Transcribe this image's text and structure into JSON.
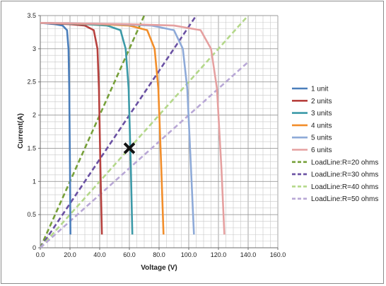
{
  "chart_data": {
    "type": "line",
    "title": "",
    "xlabel": "Voltage (V)",
    "ylabel": "Current(A)",
    "xlim": [
      0,
      160
    ],
    "ylim": [
      0,
      3.5
    ],
    "grid": true,
    "legend_position": "right",
    "x_ticks": [
      0,
      20,
      40,
      60,
      80,
      100,
      120,
      140,
      160
    ],
    "x_tick_labels": [
      "0.0",
      "20.0",
      "40.0",
      "60.0",
      "80.0",
      "100.0",
      "120.0",
      "140.0",
      "160.0"
    ],
    "y_ticks": [
      0,
      0.5,
      1,
      1.5,
      2,
      2.5,
      3,
      3.5
    ],
    "y_tick_labels": [
      "0",
      "0.5",
      "1",
      "1.5",
      "2",
      "2.5",
      "3",
      "3.5"
    ],
    "series": [
      {
        "name": "1 unit",
        "color": "#4a7ebb",
        "style": "solid",
        "points": [
          [
            0,
            3.39
          ],
          [
            10,
            3.37
          ],
          [
            15,
            3.35
          ],
          [
            18,
            3.28
          ],
          [
            19,
            3.0
          ],
          [
            19.5,
            2.4
          ],
          [
            20,
            1.2
          ],
          [
            20.3,
            0.2
          ]
        ]
      },
      {
        "name": "2 units",
        "color": "#b7413e",
        "style": "solid",
        "points": [
          [
            0,
            3.39
          ],
          [
            20,
            3.37
          ],
          [
            30,
            3.35
          ],
          [
            36,
            3.28
          ],
          [
            38.5,
            3.0
          ],
          [
            39.5,
            2.4
          ],
          [
            40.5,
            1.2
          ],
          [
            41.5,
            0.2
          ]
        ]
      },
      {
        "name": "3 units",
        "color": "#3c9aa8",
        "style": "solid",
        "points": [
          [
            0,
            3.39
          ],
          [
            30,
            3.37
          ],
          [
            45,
            3.35
          ],
          [
            54,
            3.28
          ],
          [
            57.5,
            3.0
          ],
          [
            59.5,
            2.4
          ],
          [
            61,
            1.2
          ],
          [
            62,
            0.2
          ]
        ]
      },
      {
        "name": "4 units",
        "color": "#f28e2b",
        "style": "solid",
        "points": [
          [
            0,
            3.39
          ],
          [
            40,
            3.37
          ],
          [
            60,
            3.35
          ],
          [
            72,
            3.28
          ],
          [
            77,
            3.0
          ],
          [
            79.5,
            2.4
          ],
          [
            81.5,
            1.2
          ],
          [
            83,
            0.2
          ]
        ]
      },
      {
        "name": "5 units",
        "color": "#8eaad8",
        "style": "solid",
        "points": [
          [
            0,
            3.39
          ],
          [
            50,
            3.37
          ],
          [
            75,
            3.35
          ],
          [
            90,
            3.28
          ],
          [
            96,
            3.0
          ],
          [
            99,
            2.4
          ],
          [
            101.5,
            1.2
          ],
          [
            103.5,
            0.2
          ]
        ]
      },
      {
        "name": "6 units",
        "color": "#e5a0a0",
        "style": "solid",
        "points": [
          [
            0,
            3.39
          ],
          [
            60,
            3.37
          ],
          [
            90,
            3.35
          ],
          [
            108,
            3.28
          ],
          [
            115,
            3.0
          ],
          [
            119,
            2.4
          ],
          [
            122,
            1.2
          ],
          [
            124,
            0.2
          ]
        ]
      },
      {
        "name": "LoadLine:R=20 ohms",
        "color": "#77a03a",
        "style": "dashed",
        "points": [
          [
            0,
            0
          ],
          [
            70,
            3.5
          ]
        ]
      },
      {
        "name": "LoadLine:R=30 ohms",
        "color": "#6a51a3",
        "style": "dashed",
        "points": [
          [
            0,
            0
          ],
          [
            105,
            3.5
          ]
        ]
      },
      {
        "name": "LoadLine:R=40 ohms",
        "color": "#b4d88a",
        "style": "dashed",
        "points": [
          [
            0,
            0
          ],
          [
            140,
            3.5
          ]
        ]
      },
      {
        "name": "LoadLine:R=50 ohms",
        "color": "#b9a8d6",
        "style": "dashed",
        "points": [
          [
            0,
            0
          ],
          [
            140,
            2.8
          ]
        ]
      }
    ],
    "markers": [
      {
        "symbol": "x",
        "color": "#111111",
        "x": 60,
        "y": 1.5
      }
    ]
  }
}
